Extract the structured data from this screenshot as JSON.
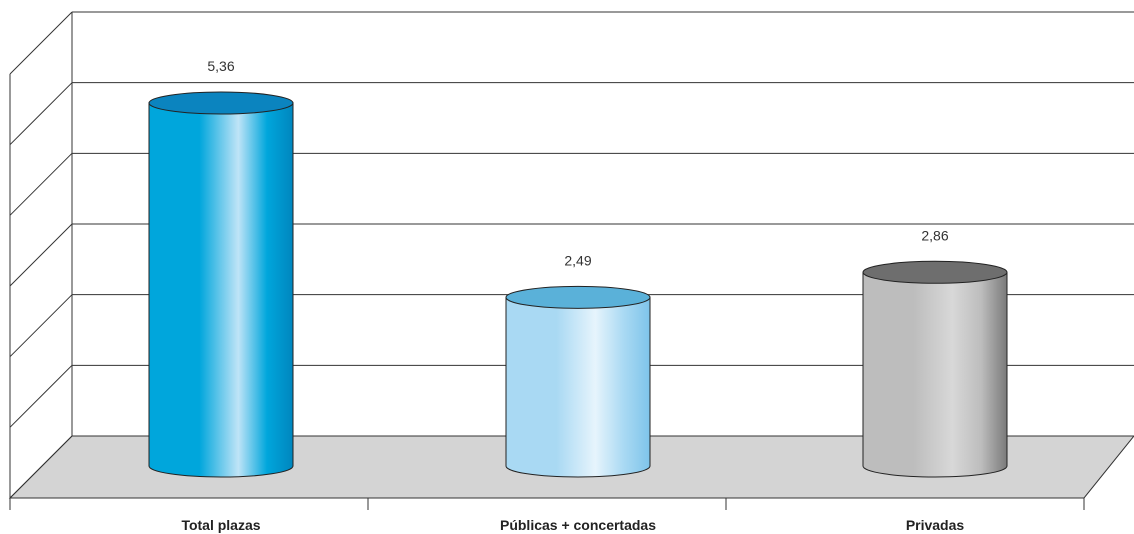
{
  "chart_data": {
    "type": "bar",
    "style": "3d-cylinder",
    "categories": [
      "Total plazas",
      "Públicas + concertadas",
      "Privadas"
    ],
    "values": [
      5.36,
      2.49,
      2.86
    ],
    "value_labels": [
      "5,36",
      "2,49",
      "2,86"
    ],
    "ylim": [
      0,
      6
    ],
    "grid": true,
    "legend": "none",
    "title": "",
    "xlabel": "",
    "ylabel": "",
    "colors": {
      "Total plazas": {
        "light": "#bfe4f7",
        "mid": "#00a6dc",
        "dark": "#0086be",
        "top": "#0b84bf"
      },
      "Públicas + concertadas": {
        "light": "#e6f4fc",
        "mid": "#a9d9f3",
        "dark": "#7ec4ea",
        "top": "#5ab1d9"
      },
      "Privadas": {
        "light": "#d8d8d8",
        "mid": "#bdbdbd",
        "dark": "#7a7a7a",
        "top": "#6e6e6e"
      },
      "floor": "#d4d4d4"
    }
  }
}
